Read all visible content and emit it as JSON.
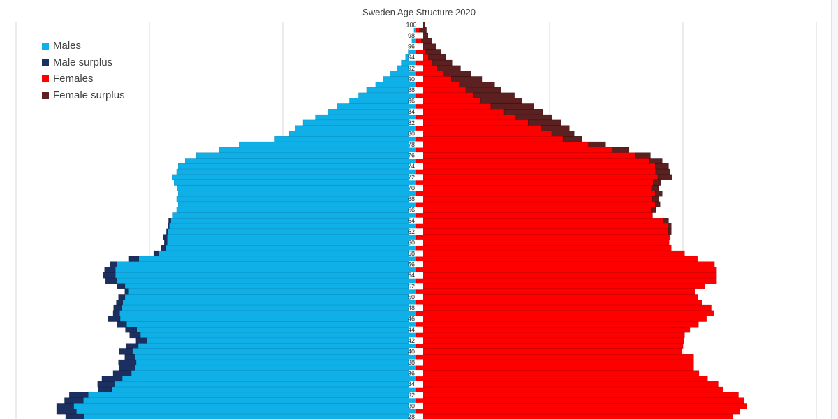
{
  "chart_data": {
    "type": "bar",
    "title": "Sweden Age Structure 2020",
    "orientation": "horizontal-pyramid",
    "age_tick_labels": [
      "100",
      "98",
      "96",
      "94",
      "92",
      "90",
      "88",
      "86",
      "84",
      "82",
      "80",
      "78",
      "76",
      "74",
      "72",
      "70",
      "68",
      "66",
      "64",
      "62",
      "60",
      "58",
      "56",
      "54",
      "52",
      "50",
      "48",
      "46",
      "44",
      "42",
      "40",
      "38",
      "36",
      "34",
      "32",
      "30",
      "28"
    ],
    "xlim": [
      -75000,
      75000
    ],
    "grid": true,
    "legend_position": "top-left",
    "ages": [
      100,
      99,
      98,
      97,
      96,
      95,
      94,
      93,
      92,
      91,
      90,
      89,
      88,
      87,
      86,
      85,
      84,
      83,
      82,
      81,
      80,
      79,
      78,
      77,
      76,
      75,
      74,
      73,
      72,
      71,
      70,
      69,
      68,
      67,
      66,
      65,
      64,
      63,
      62,
      61,
      60,
      59,
      58,
      57,
      56,
      55,
      54,
      53,
      52,
      51,
      50,
      49,
      48,
      47,
      46,
      45,
      44,
      43,
      42,
      41,
      40,
      39,
      38,
      37,
      36,
      35,
      34,
      33,
      32,
      31,
      30,
      29,
      28
    ],
    "series": [
      {
        "name": "Males",
        "color": "#0fb0e8",
        "values": [
          300,
          400,
          600,
          800,
          1100,
          1500,
          2000,
          2800,
          3600,
          4900,
          6200,
          7600,
          9300,
          10800,
          12500,
          14800,
          16500,
          18900,
          21200,
          22700,
          23800,
          26500,
          33200,
          36900,
          41200,
          43300,
          44600,
          44900,
          45700,
          45400,
          44800,
          44600,
          44900,
          44600,
          44900,
          45600,
          46000,
          46300,
          46600,
          46700,
          46700,
          47000,
          48200,
          52000,
          56200,
          56400,
          56400,
          56200,
          54600,
          53900,
          54600,
          55000,
          55200,
          55600,
          55500,
          54300,
          52400,
          51700,
          50500,
          52100,
          53200,
          52800,
          52500,
          52700,
          53400,
          55100,
          56600,
          57100,
          61500,
          62400,
          64200,
          63700,
          62300
        ]
      },
      {
        "name": "Male surplus",
        "color": "#1b3060",
        "values": [
          0,
          0,
          0,
          0,
          0,
          0,
          0,
          0,
          0,
          0,
          0,
          0,
          0,
          0,
          0,
          0,
          0,
          0,
          0,
          0,
          0,
          0,
          0,
          0,
          0,
          0,
          0,
          0,
          0,
          0,
          0,
          0,
          0,
          0,
          0,
          0,
          400,
          200,
          200,
          700,
          500,
          800,
          1000,
          1800,
          1200,
          2000,
          2200,
          2000,
          1500,
          700,
          1200,
          1200,
          1500,
          1200,
          2200,
          1800,
          2100,
          2000,
          2000,
          2200,
          2400,
          1800,
          3300,
          3000,
          3400,
          3800,
          3100,
          2500,
          3500,
          3500,
          3200,
          3700,
          3400
        ]
      },
      {
        "name": "Females",
        "color": "#ff0000",
        "values": [
          400,
          600,
          800,
          1000,
          1300,
          1800,
          2300,
          3000,
          4000,
          5200,
          6600,
          8100,
          9300,
          10800,
          12100,
          14000,
          16500,
          18700,
          21000,
          23400,
          25400,
          27500,
          32300,
          36700,
          41100,
          43700,
          44800,
          44900,
          45300,
          44400,
          44100,
          44800,
          44300,
          44800,
          44000,
          44300,
          46300,
          47200,
          47300,
          47500,
          47400,
          47800,
          50300,
          52700,
          55900,
          56300,
          56300,
          56300,
          54100,
          52200,
          52800,
          53500,
          55300,
          55800,
          54400,
          52900,
          51300,
          50300,
          50100,
          50000,
          49800,
          52000,
          52000,
          52000,
          53000,
          54600,
          56600,
          57500,
          60400,
          61400,
          61900,
          60700,
          59400
        ]
      },
      {
        "name": "Female surplus",
        "color": "#5c2020",
        "values": [
          1200,
          1300,
          1400,
          1900,
          2400,
          2800,
          3200,
          3700,
          4300,
          5000,
          5700,
          6600,
          6600,
          7600,
          7700,
          8000,
          7200,
          6800,
          6200,
          5300,
          4200,
          3500,
          3200,
          3200,
          2800,
          2400,
          2500,
          2700,
          2700,
          1400,
          1300,
          1300,
          1200,
          900,
          900,
          0,
          1000,
          600,
          500,
          0,
          0,
          0,
          0,
          0,
          0,
          0,
          0,
          0,
          0,
          0,
          0,
          0,
          0,
          0,
          0,
          0,
          0,
          0,
          0,
          0,
          0,
          0,
          0,
          0,
          0,
          0,
          0,
          0,
          0,
          0,
          0,
          0,
          0
        ]
      }
    ]
  }
}
